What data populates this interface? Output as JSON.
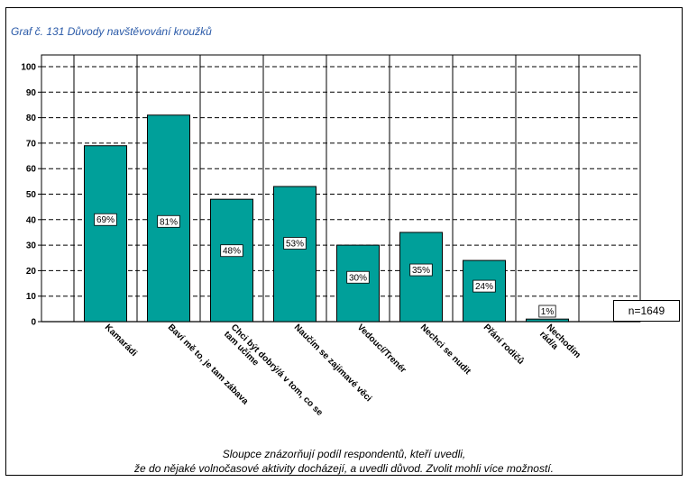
{
  "title": "Graf č. 131 Důvody navštěvování kroužků",
  "n_label": "n=1649",
  "caption": {
    "line1": "Sloupce znázorňují podíl respondentů, kteří uvedli,",
    "line2": "že do nějaké volnočasové aktivity docházejí, a uvedli důvod. Zvolit mohli více možností."
  },
  "colors": {
    "bar": "#00a09a",
    "bar_stroke": "#000000",
    "grid": "#000000"
  },
  "chart_data": {
    "type": "bar",
    "categories": [
      [
        "Kamarádi"
      ],
      [
        "Baví mě to, je tam zábava"
      ],
      [
        "Chci být dobrý/á v tom, co se",
        "tam učíme"
      ],
      [
        "Naučím se zajímavé věci"
      ],
      [
        "Vedoucí/Trenér"
      ],
      [
        "Nechci se nudit"
      ],
      [
        "Přání rodičů"
      ],
      [
        "Nechodím",
        "rád/a"
      ]
    ],
    "values": [
      69,
      81,
      48,
      53,
      30,
      35,
      24,
      1
    ],
    "data_labels": [
      "69%",
      "81%",
      "48%",
      "53%",
      "30%",
      "35%",
      "24%",
      "1%"
    ],
    "yticks": [
      "0",
      "10",
      "20",
      "30",
      "40",
      "50",
      "60",
      "70",
      "80",
      "90",
      "100"
    ],
    "ylim": [
      0,
      100
    ],
    "grid": "dashed horizontal",
    "xlabel": "",
    "ylabel": ""
  }
}
